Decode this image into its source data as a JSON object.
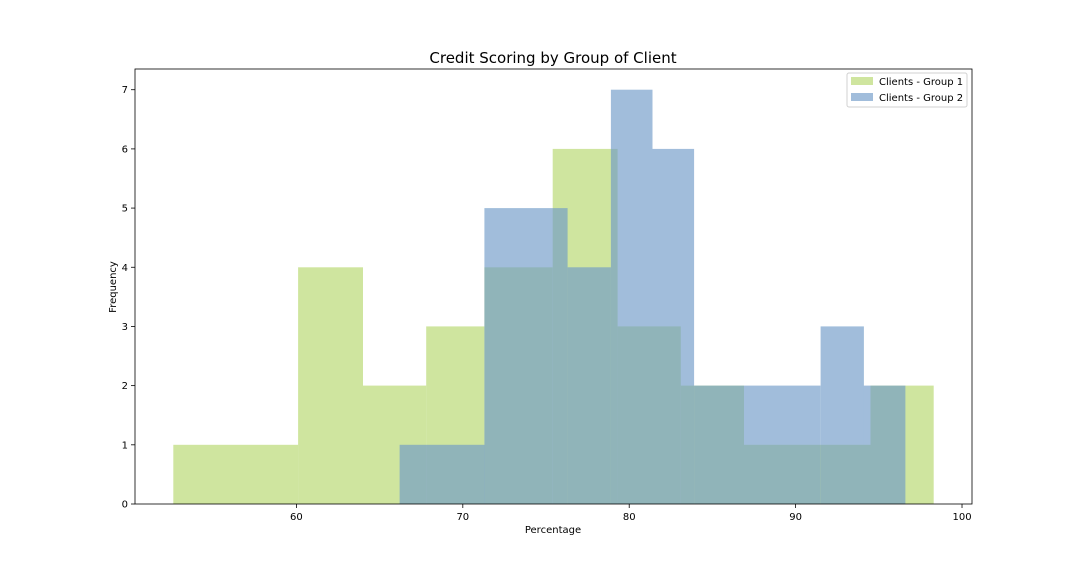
{
  "colors": {
    "group1": "#b5d76b",
    "group2": "#6f9ac7",
    "axis": "#000000"
  },
  "chart_data": {
    "type": "histogram",
    "title": "Credit Scoring by Group of Client",
    "xlabel": "Percentage",
    "ylabel": "Frequency",
    "xlim": [
      50.3,
      100.6
    ],
    "ylim": [
      0,
      7.35
    ],
    "x_ticks": [
      60,
      70,
      80,
      90,
      100
    ],
    "y_ticks": [
      0,
      1,
      2,
      3,
      4,
      5,
      6,
      7
    ],
    "grid": false,
    "legend_position": "top-right",
    "legend": [
      "Clients - Group 1",
      "Clients - Group 2"
    ],
    "series": [
      {
        "name": "Clients - Group 1",
        "color": "#b5d76b",
        "opacity": 0.65,
        "bins": [
          {
            "x0": 52.6,
            "x1": 60.1,
            "count": 1
          },
          {
            "x0": 60.1,
            "x1": 64.0,
            "count": 4
          },
          {
            "x0": 64.0,
            "x1": 67.8,
            "count": 2
          },
          {
            "x0": 67.8,
            "x1": 71.3,
            "count": 3
          },
          {
            "x0": 71.3,
            "x1": 75.4,
            "count": 4
          },
          {
            "x0": 75.4,
            "x1": 79.3,
            "count": 6
          },
          {
            "x0": 79.3,
            "x1": 83.1,
            "count": 3
          },
          {
            "x0": 83.1,
            "x1": 86.9,
            "count": 2
          },
          {
            "x0": 86.9,
            "x1": 94.5,
            "count": 1
          },
          {
            "x0": 94.5,
            "x1": 98.3,
            "count": 2
          }
        ]
      },
      {
        "name": "Clients - Group 2",
        "color": "#6f9ac7",
        "opacity": 0.65,
        "bins": [
          {
            "x0": 66.2,
            "x1": 71.3,
            "count": 1
          },
          {
            "x0": 71.3,
            "x1": 76.3,
            "count": 5
          },
          {
            "x0": 76.3,
            "x1": 78.9,
            "count": 4
          },
          {
            "x0": 78.9,
            "x1": 81.4,
            "count": 7
          },
          {
            "x0": 81.4,
            "x1": 83.9,
            "count": 6
          },
          {
            "x0": 83.9,
            "x1": 86.9,
            "count": 2
          },
          {
            "x0": 86.9,
            "x1": 91.5,
            "count": 2
          },
          {
            "x0": 91.5,
            "x1": 94.1,
            "count": 3
          },
          {
            "x0": 94.1,
            "x1": 96.6,
            "count": 2
          }
        ]
      }
    ]
  }
}
